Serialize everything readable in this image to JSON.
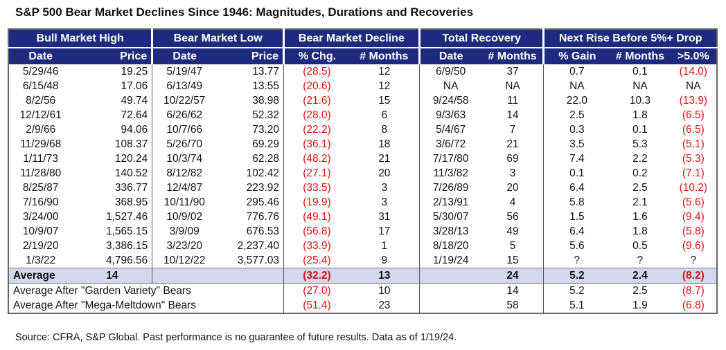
{
  "title": "S&P 500 Bear Market Declines Since 1946: Magnitudes, Durations and Recoveries",
  "groups": [
    "Bull Market High",
    "Bear Market Low",
    "Bear Market Decline",
    "Total Recovery",
    "Next Rise Before 5%+ Drop"
  ],
  "columns": [
    "Date",
    "Price",
    "Date",
    "Price",
    "% Chg.",
    "# Months",
    "Date",
    "# Months",
    "% Gain",
    "# Months",
    ">5.0%"
  ],
  "rows": [
    [
      "5/29/46",
      "19.25",
      "5/19/47",
      "13.77",
      "(28.5)",
      "12",
      "6/9/50",
      "37",
      "0.7",
      "0.1",
      "(14.0)"
    ],
    [
      "6/15/48",
      "17.06",
      "6/13/49",
      "13.55",
      "(20.6)",
      "12",
      "NA",
      "NA",
      "NA",
      "NA",
      "NA"
    ],
    [
      "8/2/56",
      "49.74",
      "10/22/57",
      "38.98",
      "(21.6)",
      "15",
      "9/24/58",
      "11",
      "22.0",
      "10.3",
      "(13.9)"
    ],
    [
      "12/12/61",
      "72.64",
      "6/26/62",
      "52.32",
      "(28.0)",
      "6",
      "9/3/63",
      "14",
      "2.5",
      "1.8",
      "(6.5)"
    ],
    [
      "2/9/66",
      "94.06",
      "10/7/66",
      "73.20",
      "(22.2)",
      "8",
      "5/4/67",
      "7",
      "0.3",
      "0.1",
      "(6.5)"
    ],
    [
      "11/29/68",
      "108.37",
      "5/26/70",
      "69.29",
      "(36.1)",
      "18",
      "3/6/72",
      "21",
      "3.5",
      "5.3",
      "(5.1)"
    ],
    [
      "1/11/73",
      "120.24",
      "10/3/74",
      "62.28",
      "(48.2)",
      "21",
      "7/17/80",
      "69",
      "7.4",
      "2.2",
      "(5.3)"
    ],
    [
      "11/28/80",
      "140.52",
      "8/12/82",
      "102.42",
      "(27.1)",
      "20",
      "11/3/82",
      "3",
      "0.1",
      "0.2",
      "(7.1)"
    ],
    [
      "8/25/87",
      "336.77",
      "12/4/87",
      "223.92",
      "(33.5)",
      "3",
      "7/26/89",
      "20",
      "6.4",
      "2.5",
      "(10.2)"
    ],
    [
      "7/16/90",
      "368.95",
      "10/11/90",
      "295.46",
      "(19.9)",
      "3",
      "2/13/91",
      "4",
      "5.8",
      "2.1",
      "(5.6)"
    ],
    [
      "3/24/00",
      "1,527.46",
      "10/9/02",
      "776.76",
      "(49.1)",
      "31",
      "5/30/07",
      "56",
      "1.5",
      "1.6",
      "(9.4)"
    ],
    [
      "10/9/07",
      "1,565.15",
      "3/9/09",
      "676.53",
      "(56.8)",
      "17",
      "3/28/13",
      "49",
      "6.4",
      "1.8",
      "(5.8)"
    ],
    [
      "2/19/20",
      "3,386.15",
      "3/23/20",
      "2,237.40",
      "(33.9)",
      "1",
      "8/18/20",
      "5",
      "5.6",
      "0.5",
      "(9.6)"
    ],
    [
      "1/3/22",
      "4,796.56",
      "10/12/22",
      "3,577.03",
      "(25.4)",
      "9",
      "1/19/24",
      "15",
      "?",
      "?",
      "?"
    ]
  ],
  "average": {
    "label": "Average",
    "bull_months": "14",
    "decline_pct": "(32.2)",
    "decline_months": "13",
    "recovery_months": "24",
    "gain": "5.2",
    "months": "2.4",
    "drop": "(8.2)"
  },
  "footer_rows": [
    {
      "label": "Average After \"Garden Variety\" Bears",
      "decline_pct": "(27.0)",
      "decline_months": "10",
      "recovery_months": "14",
      "gain": "5.2",
      "months": "2.5",
      "drop": "(8.7)"
    },
    {
      "label": "Average After \"Mega-Meltdown\" Bears",
      "decline_pct": "(51.4)",
      "decline_months": "23",
      "recovery_months": "58",
      "gain": "5.1",
      "months": "1.9",
      "drop": "(6.8)"
    }
  ],
  "source": "Source: CFRA, S&P Global. Past performance is no guarantee of future results. Data as of 1/19/24.",
  "colors": {
    "header_bg": "#1e2a7e",
    "negative": "#e01010",
    "average_bg": "#d2d9ee"
  }
}
